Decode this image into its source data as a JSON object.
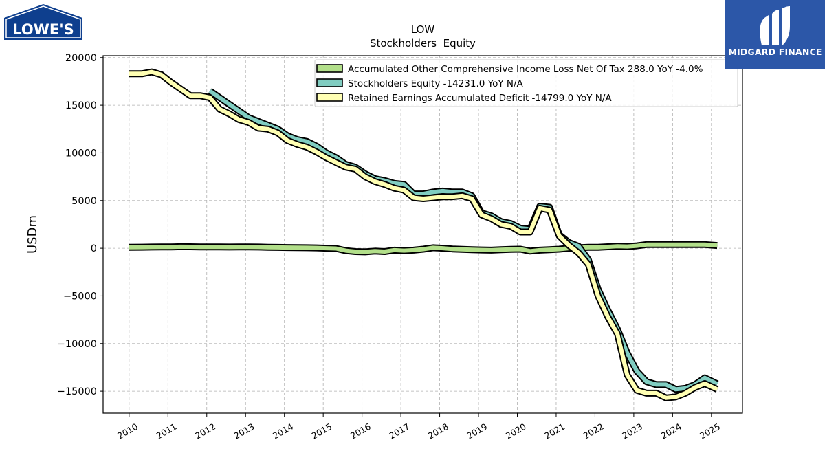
{
  "logos": {
    "left_text": "LOWE'S",
    "right_text": "MIDGARD FINANCE"
  },
  "chart_data": {
    "type": "line",
    "title": "LOW",
    "subtitle": "Stockholders  Equity",
    "ylabel": "USDm",
    "xlabel": "",
    "ylim": [
      -17300,
      20200
    ],
    "xlim": [
      2009.33,
      2025.8
    ],
    "yticks": [
      -15000,
      -10000,
      -5000,
      0,
      5000,
      10000,
      15000,
      20000
    ],
    "xticks": [
      2010,
      2011,
      2012,
      2013,
      2014,
      2015,
      2016,
      2017,
      2018,
      2019,
      2020,
      2021,
      2022,
      2023,
      2024,
      2025
    ],
    "grid": true,
    "legend_position": "top-right",
    "series": [
      {
        "name": "Accumulated Other Comprehensive Income Loss Net Of Tax  288.0 YoY -4.0%",
        "color": "#b2df8a",
        "x": [
          2010.0,
          2010.33,
          2010.58,
          2010.83,
          2011.08,
          2011.33,
          2011.58,
          2011.83,
          2012.08,
          2012.33,
          2012.58,
          2012.83,
          2013.08,
          2013.33,
          2013.58,
          2013.83,
          2014.08,
          2014.33,
          2014.58,
          2014.83,
          2015.08,
          2015.33,
          2015.58,
          2015.83,
          2016.08,
          2016.33,
          2016.58,
          2016.83,
          2017.08,
          2017.33,
          2017.58,
          2017.83,
          2018.08,
          2018.33,
          2018.58,
          2018.83,
          2019.08,
          2019.33,
          2019.58,
          2019.83,
          2020.08,
          2020.33,
          2020.58,
          2020.83,
          2021.08,
          2021.33,
          2021.58,
          2021.83,
          2022.08,
          2022.33,
          2022.58,
          2022.83,
          2023.08,
          2023.33,
          2023.58,
          2023.83,
          2024.08,
          2024.33,
          2024.58,
          2024.83,
          2025.15
        ],
        "values": [
          100,
          110,
          120,
          130,
          140,
          160,
          150,
          130,
          130,
          130,
          120,
          130,
          130,
          120,
          100,
          90,
          70,
          60,
          50,
          40,
          0,
          -30,
          -250,
          -350,
          -380,
          -300,
          -350,
          -200,
          -250,
          -200,
          -100,
          50,
          0,
          -80,
          -120,
          -150,
          -180,
          -200,
          -150,
          -120,
          -100,
          -300,
          -200,
          -150,
          -100,
          0,
          50,
          100,
          100,
          150,
          200,
          180,
          250,
          380,
          380,
          380,
          380,
          380,
          380,
          380,
          288
        ]
      },
      {
        "name": "Stockholders Equity  -14231.0 YoY N/A",
        "color": "#80cdc1",
        "x": [
          2012.08,
          2012.33,
          2012.58,
          2012.83,
          2013.08,
          2013.33,
          2013.58,
          2013.83,
          2014.08,
          2014.33,
          2014.58,
          2014.83,
          2015.08,
          2015.33,
          2015.58,
          2015.83,
          2016.08,
          2016.33,
          2016.58,
          2016.83,
          2017.08,
          2017.33,
          2017.58,
          2017.83,
          2018.08,
          2018.33,
          2018.58,
          2018.83,
          2019.08,
          2019.33,
          2019.58,
          2019.83,
          2020.08,
          2020.33,
          2020.58,
          2020.83,
          2021.08,
          2021.33,
          2021.58,
          2021.83,
          2022.08,
          2022.33,
          2022.58,
          2022.83,
          2023.08,
          2023.33,
          2023.58,
          2023.83,
          2024.08,
          2024.33,
          2024.58,
          2024.83,
          2025.15
        ],
        "values": [
          16500,
          15800,
          15100,
          14400,
          13700,
          13300,
          12900,
          12500,
          11800,
          11400,
          11200,
          10700,
          10000,
          9500,
          8800,
          8500,
          7800,
          7300,
          7100,
          6800,
          6700,
          5700,
          5700,
          5900,
          6000,
          5900,
          5900,
          5500,
          3700,
          3400,
          2800,
          2600,
          2100,
          2000,
          4400,
          4300,
          1400,
          600,
          200,
          -1200,
          -4300,
          -6500,
          -8500,
          -11000,
          -12900,
          -14000,
          -14300,
          -14300,
          -14800,
          -14700,
          -14300,
          -13600,
          -14231
        ]
      },
      {
        "name": "Retained Earnings Accumulated Deficit  -14799.0 YoY N/A",
        "color": "#ffffb3",
        "x": [
          2010.0,
          2010.33,
          2010.58,
          2010.83,
          2011.08,
          2011.33,
          2011.58,
          2011.83,
          2012.08,
          2012.33,
          2012.58,
          2012.83,
          2013.08,
          2013.33,
          2013.58,
          2013.83,
          2014.08,
          2014.33,
          2014.58,
          2014.83,
          2015.08,
          2015.33,
          2015.58,
          2015.83,
          2016.08,
          2016.33,
          2016.58,
          2016.83,
          2017.08,
          2017.33,
          2017.58,
          2017.83,
          2018.08,
          2018.33,
          2018.58,
          2018.83,
          2019.08,
          2019.33,
          2019.58,
          2019.83,
          2020.08,
          2020.33,
          2020.58,
          2020.83,
          2021.08,
          2021.33,
          2021.58,
          2021.83,
          2022.08,
          2022.33,
          2022.58,
          2022.83,
          2023.08,
          2023.33,
          2023.58,
          2023.83,
          2024.08,
          2024.33,
          2024.58,
          2024.83,
          2025.15
        ],
        "values": [
          18300,
          18300,
          18500,
          18200,
          17400,
          16700,
          16000,
          16000,
          15800,
          14600,
          14100,
          13500,
          13200,
          12600,
          12500,
          12100,
          11300,
          10900,
          10600,
          10100,
          9500,
          9000,
          8500,
          8300,
          7500,
          7000,
          6700,
          6300,
          6100,
          5300,
          5200,
          5300,
          5400,
          5400,
          5500,
          5200,
          3500,
          3100,
          2500,
          2300,
          1700,
          1700,
          4200,
          4000,
          1300,
          300,
          -500,
          -1700,
          -5000,
          -7200,
          -9000,
          -13300,
          -14900,
          -15200,
          -15200,
          -15700,
          -15600,
          -15200,
          -14600,
          -14200,
          -14799
        ]
      }
    ]
  }
}
